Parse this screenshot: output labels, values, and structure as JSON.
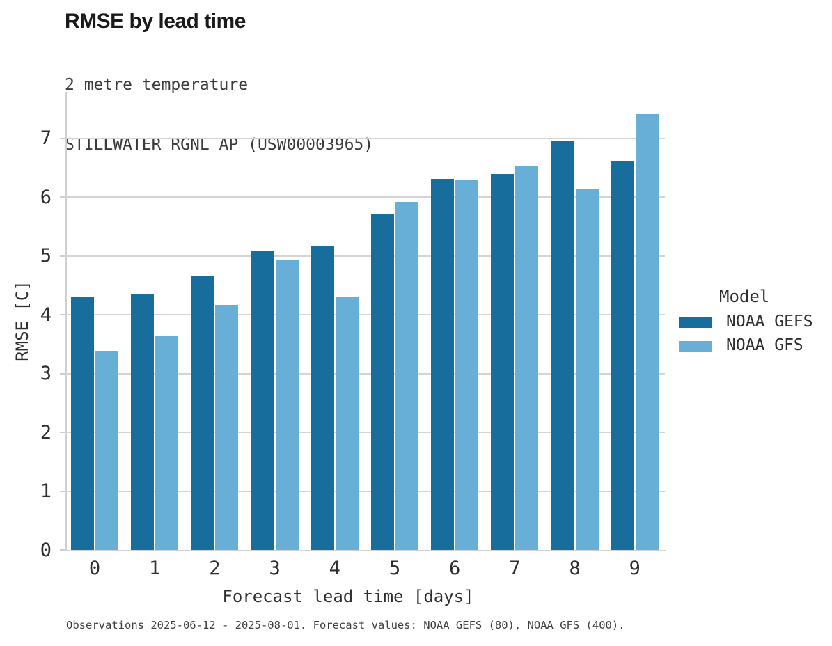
{
  "chart_data": {
    "type": "bar",
    "title": "RMSE by lead time",
    "subtitle_lines": [
      "2 metre temperature",
      "STILLWATER RGNL AP (USW00003965)"
    ],
    "xlabel": "Forecast lead time [days]",
    "ylabel": "RMSE [C]",
    "categories": [
      "0",
      "1",
      "2",
      "3",
      "4",
      "5",
      "6",
      "7",
      "8",
      "9"
    ],
    "series": [
      {
        "name": "NOAA GEFS",
        "color": "#176E9C",
        "values": [
          4.31,
          4.36,
          4.65,
          5.08,
          5.18,
          5.71,
          6.31,
          6.4,
          6.97,
          6.61
        ]
      },
      {
        "name": "NOAA GFS",
        "color": "#67AFD7",
        "values": [
          3.39,
          3.65,
          4.17,
          4.94,
          4.3,
          5.92,
          6.29,
          6.54,
          6.15,
          7.42
        ]
      }
    ],
    "ylim": [
      0,
      7.8
    ],
    "yticks": [
      0,
      1,
      2,
      3,
      4,
      5,
      6,
      7
    ],
    "grid": true,
    "legend_title": "Model",
    "legend_position": "right",
    "footnote": "Observations 2025-06-12 - 2025-08-01. Forecast values: NOAA GEFS (80), NOAA GFS (400)."
  },
  "colors": {
    "gefs_bar": "#176E9C",
    "gfs_bar": "#67AFD7",
    "gridline": "#D4D4D4",
    "spine": "#CFCFCF",
    "title_text": "#1A1A1A",
    "body_text": "#2E2E2E",
    "footnote_text": "#3D3D3D"
  }
}
